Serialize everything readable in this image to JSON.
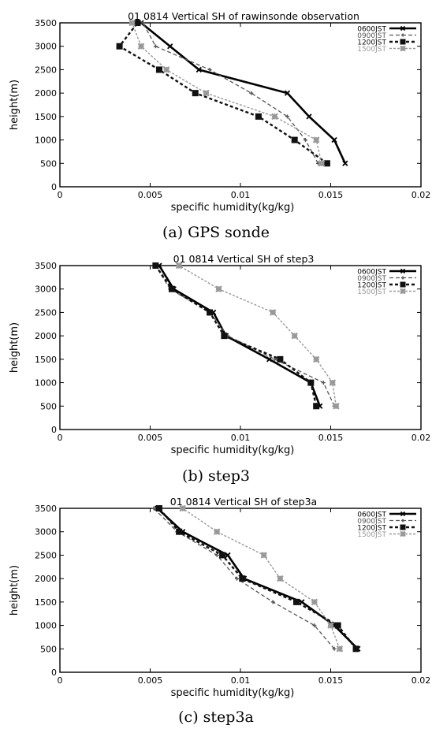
{
  "colors": {
    "series_0600": "#000000",
    "series_0900": "#555555",
    "series_1200": "#111111",
    "series_1500": "#999999",
    "axis": "#000000"
  },
  "chart_data": [
    {
      "type": "line",
      "caption": "(a) GPS sonde",
      "title": "01 0814 Vertical SH of rawinsonde observation",
      "xlabel": "specific humidity(kg/kg)",
      "ylabel": "height(m)",
      "xlim": [
        0,
        0.02
      ],
      "ylim": [
        0,
        3500
      ],
      "x_ticks": [
        "0",
        "0.005",
        "0.01",
        "0.015",
        "0.02"
      ],
      "y_ticks": [
        "0",
        "500",
        "1000",
        "1500",
        "2000",
        "2500",
        "3000",
        "3500"
      ],
      "grid": false,
      "legend_position": "top-right",
      "series": [
        {
          "name": "0600JST",
          "x": [
            0.0158,
            0.0152,
            0.0138,
            0.0126,
            0.0077,
            0.0061,
            0.0045
          ],
          "y": [
            500,
            1000,
            1500,
            2000,
            2500,
            3000,
            3500
          ]
        },
        {
          "name": "0900JST",
          "x": [
            0.0143,
            0.0136,
            0.0126,
            0.0106,
            0.0083,
            0.0053,
            0.0046
          ],
          "y": [
            500,
            1000,
            1500,
            2000,
            2500,
            3000,
            3500
          ]
        },
        {
          "name": "1200JST",
          "x": [
            0.0148,
            0.013,
            0.011,
            0.0075,
            0.0055,
            0.0033,
            0.0043
          ],
          "y": [
            500,
            1000,
            1500,
            2000,
            2500,
            3000,
            3500
          ]
        },
        {
          "name": "1500JST",
          "x": [
            0.0145,
            0.0142,
            0.0119,
            0.0081,
            0.0059,
            0.0045,
            0.004
          ],
          "y": [
            500,
            1000,
            1500,
            2000,
            2500,
            3000,
            3500
          ]
        }
      ]
    },
    {
      "type": "line",
      "caption": "(b) step3",
      "title": "01 0814 Vertical SH of step3",
      "xlabel": "specific humidity(kg/kg)",
      "ylabel": "height(m)",
      "xlim": [
        0,
        0.02
      ],
      "ylim": [
        0,
        3500
      ],
      "x_ticks": [
        "0",
        "0.005",
        "0.01",
        "0.015",
        "0.02"
      ],
      "y_ticks": [
        "0",
        "500",
        "1000",
        "1500",
        "2000",
        "2500",
        "3000",
        "3500"
      ],
      "grid": false,
      "legend_position": "top-right",
      "series": [
        {
          "name": "0600JST",
          "x": [
            0.0144,
            0.0139,
            0.0116,
            0.0092,
            0.0085,
            0.0063,
            0.0055
          ],
          "y": [
            500,
            1000,
            1500,
            2000,
            2500,
            3000,
            3500
          ]
        },
        {
          "name": "0900JST",
          "x": [
            0.0152,
            0.0146,
            0.0119,
            0.0093,
            0.0083,
            0.0061,
            0.0053
          ],
          "y": [
            500,
            1000,
            1500,
            2000,
            2500,
            3000,
            3500
          ]
        },
        {
          "name": "1200JST",
          "x": [
            0.0142,
            0.0139,
            0.0122,
            0.0091,
            0.0083,
            0.0062,
            0.0053
          ],
          "y": [
            500,
            1000,
            1500,
            2000,
            2500,
            3000,
            3500
          ]
        },
        {
          "name": "1500JST",
          "x": [
            0.0153,
            0.0151,
            0.0142,
            0.013,
            0.0118,
            0.0088,
            0.0066
          ],
          "y": [
            500,
            1000,
            1500,
            2000,
            2500,
            3000,
            3500
          ]
        }
      ]
    },
    {
      "type": "line",
      "caption": "(c) step3a",
      "title": "01 0814 Vertical SH of step3a",
      "xlabel": "specific humidity(kg/kg)",
      "ylabel": "height(m)",
      "xlim": [
        0,
        0.02
      ],
      "ylim": [
        0,
        3500
      ],
      "x_ticks": [
        "0",
        "0.005",
        "0.01",
        "0.015",
        "0.02"
      ],
      "y_ticks": [
        "0",
        "500",
        "1000",
        "1500",
        "2000",
        "2500",
        "3000",
        "3500"
      ],
      "grid": false,
      "legend_position": "top-right",
      "series": [
        {
          "name": "0600JST",
          "x": [
            0.0165,
            0.0152,
            0.0134,
            0.0102,
            0.0093,
            0.0068,
            0.0054
          ],
          "y": [
            500,
            1000,
            1500,
            2000,
            2500,
            3000,
            3500
          ]
        },
        {
          "name": "0900JST",
          "x": [
            0.0152,
            0.0141,
            0.0118,
            0.0098,
            0.0087,
            0.0065,
            0.0052
          ],
          "y": [
            500,
            1000,
            1500,
            2000,
            2500,
            3000,
            3500
          ]
        },
        {
          "name": "1200JST",
          "x": [
            0.0164,
            0.0154,
            0.0131,
            0.0101,
            0.009,
            0.0066,
            0.0055
          ],
          "y": [
            500,
            1000,
            1500,
            2000,
            2500,
            3000,
            3500
          ]
        },
        {
          "name": "1500JST",
          "x": [
            0.0155,
            0.015,
            0.0141,
            0.0122,
            0.0113,
            0.0087,
            0.0068
          ],
          "y": [
            500,
            1000,
            1500,
            2000,
            2500,
            3000,
            3500
          ]
        }
      ]
    }
  ]
}
